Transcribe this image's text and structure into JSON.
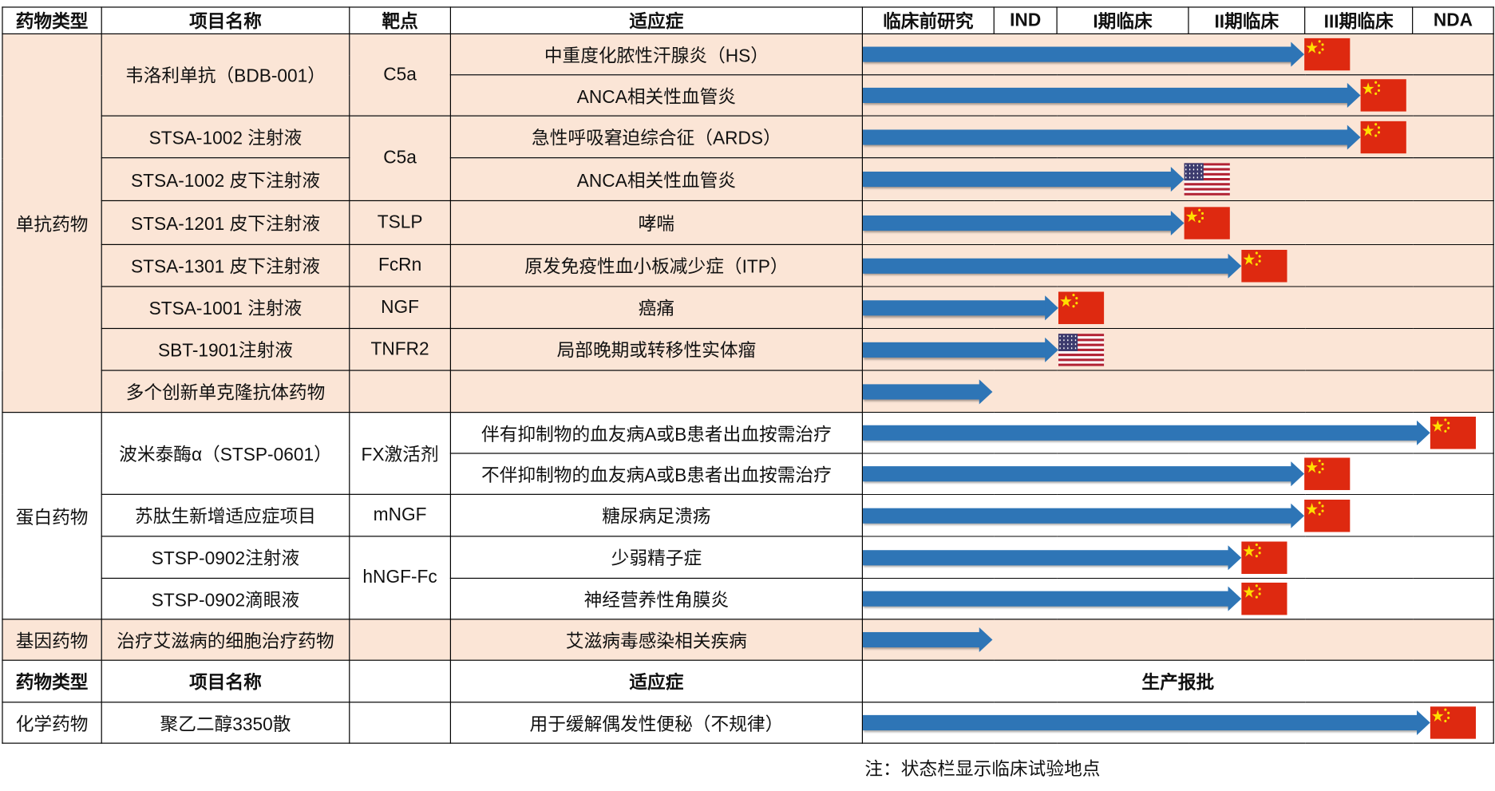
{
  "header": {
    "type": "药物类型",
    "name": "项目名称",
    "target": "靶点",
    "indication": "适应症",
    "stages": [
      "临床前研究",
      "IND",
      "I期临床",
      "II期临床",
      "III期临床",
      "NDA"
    ]
  },
  "colors": {
    "shaded": "#fbe5d6",
    "plain": "#ffffff",
    "arrow": "#2e75b6",
    "cn_red": "#de2910",
    "cn_star": "#ffde00"
  },
  "rows": [
    {
      "type": "单抗药物",
      "name": "韦洛利单抗（BDB-001）",
      "target": "C5a",
      "indication": "中重度化脓性汗腺炎（HS）",
      "progress_pct": 70,
      "flag": "cn",
      "shaded": true
    },
    {
      "type": null,
      "name": null,
      "target": null,
      "indication": "ANCA相关性血管炎",
      "progress_pct": 79,
      "flag": "cn",
      "shaded": true
    },
    {
      "type": null,
      "name": "STSA-1002 注射液",
      "target": "C5a",
      "indication": "急性呼吸窘迫综合征（ARDS）",
      "progress_pct": 79,
      "flag": "cn",
      "shaded": true
    },
    {
      "type": null,
      "name": "STSA-1002 皮下注射液",
      "target": null,
      "indication": "ANCA相关性血管炎",
      "progress_pct": 51,
      "flag": "us",
      "shaded": true
    },
    {
      "type": null,
      "name": "STSA-1201 皮下注射液",
      "target": "TSLP",
      "indication": "哮喘",
      "progress_pct": 51,
      "flag": "cn",
      "shaded": true
    },
    {
      "type": null,
      "name": "STSA-1301 皮下注射液",
      "target": "FcRn",
      "indication": "原发免疫性血小板减少症（ITP）",
      "progress_pct": 60,
      "flag": "cn",
      "shaded": true
    },
    {
      "type": null,
      "name": "STSA-1001 注射液",
      "target": "NGF",
      "indication": "癌痛",
      "progress_pct": 31,
      "flag": "cn",
      "shaded": true
    },
    {
      "type": null,
      "name": "SBT-1901注射液",
      "target": "TNFR2",
      "indication": "局部晚期或转移性实体瘤",
      "progress_pct": 31,
      "flag": "us",
      "shaded": true
    },
    {
      "type": null,
      "name": "多个创新单克隆抗体药物",
      "target": "",
      "indication": "",
      "progress_pct": 20.5,
      "flag": "none",
      "shaded": true
    },
    {
      "type": "蛋白药物",
      "name": "波米泰酶α（STSP-0601）",
      "target": "FX激活剂",
      "indication": "伴有抑制物的血友病A或B患者出血按需治疗",
      "progress_pct": 90,
      "flag": "cn",
      "shaded": false
    },
    {
      "type": null,
      "name": null,
      "target": null,
      "indication": "不伴抑制物的血友病A或B患者出血按需治疗",
      "progress_pct": 70,
      "flag": "cn",
      "shaded": false
    },
    {
      "type": null,
      "name": "苏肽生新增适应症项目",
      "target": "mNGF",
      "indication": "糖尿病足溃疡",
      "progress_pct": 70,
      "flag": "cn",
      "shaded": false
    },
    {
      "type": null,
      "name": "STSP-0902注射液",
      "target": "hNGF-Fc",
      "indication": "少弱精子症",
      "progress_pct": 60,
      "flag": "cn",
      "shaded": false
    },
    {
      "type": null,
      "name": "STSP-0902滴眼液",
      "target": null,
      "indication": "神经营养性角膜炎",
      "progress_pct": 60,
      "flag": "cn",
      "shaded": false
    },
    {
      "type": "基因药物",
      "name": "治疗艾滋病的细胞治疗药物",
      "target": "",
      "indication": "艾滋病毒感染相关疾病",
      "progress_pct": 20.5,
      "flag": "none",
      "shaded": true
    }
  ],
  "header2": {
    "type": "药物类型",
    "name": "项目名称",
    "target": "",
    "indication": "适应症",
    "stage": "生产报批"
  },
  "chem_rows": [
    {
      "type": "化学药物",
      "name": "聚乙二醇3350散",
      "target": "",
      "indication": "用于缓解偶发性便秘（不规律）",
      "progress_pct": 90,
      "flag": "cn",
      "shaded": false
    }
  ],
  "note": "注：状态栏显示临床试验地点"
}
